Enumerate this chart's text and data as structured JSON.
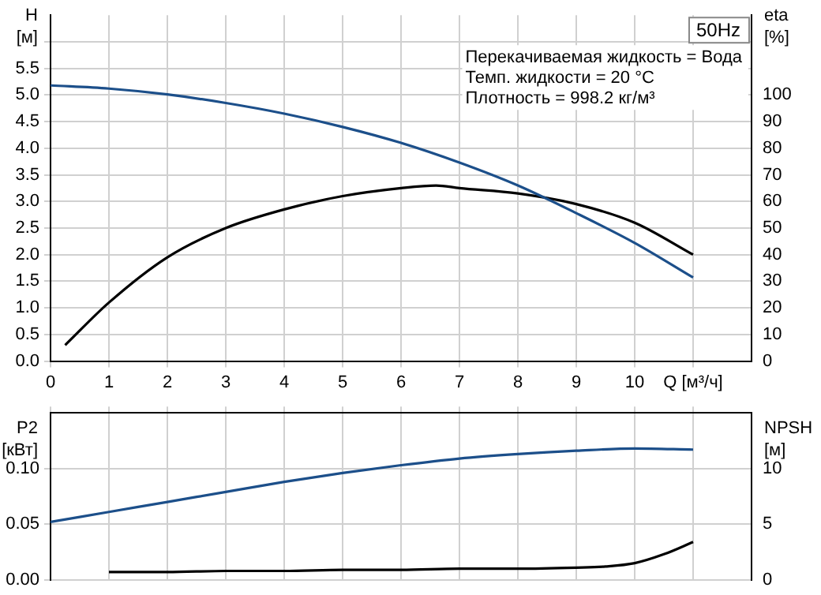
{
  "chart_data": [
    {
      "type": "line",
      "title": "50Hz",
      "ylabel": "H [м]",
      "y2label": "eta [%]",
      "annotations": [
        "Перекачиваемая жидкость = Вода",
        "Темп. жидкости = 20 °C",
        "Плотность = 998.2 кг/м³"
      ],
      "series": [
        {
          "color": "#1c4f8a",
          "axis": "y",
          "x": [
            0,
            1,
            2,
            3,
            4,
            5,
            6,
            7,
            8,
            9,
            10,
            11
          ],
          "values": [
            5.18,
            5.12,
            5.01,
            4.85,
            4.65,
            4.4,
            4.1,
            3.73,
            3.3,
            2.78,
            2.22,
            1.57
          ]
        },
        {
          "color": "#000000",
          "axis": "y2",
          "x": [
            0.25,
            1,
            2,
            3,
            4,
            5,
            6,
            6.6,
            7,
            8,
            9,
            10,
            11
          ],
          "values": [
            6,
            22,
            39,
            50,
            57,
            62,
            65,
            66,
            65,
            63,
            59,
            52,
            40
          ]
        }
      ],
      "xlim": [
        0,
        12
      ],
      "xticks": [
        0,
        1,
        2,
        3,
        4,
        5,
        6,
        7,
        8,
        9,
        10,
        {
          "value": 11,
          "label": "Q [м³/ч]"
        }
      ],
      "ylim": [
        0,
        6.5
      ],
      "yticks": [
        {
          "value": 0,
          "label": "0.0"
        },
        {
          "value": 0.5,
          "label": "0.5"
        },
        {
          "value": 1,
          "label": "1.0"
        },
        {
          "value": 1.5,
          "label": "1.5"
        },
        {
          "value": 2,
          "label": "2.0"
        },
        {
          "value": 2.5,
          "label": "2.5"
        },
        {
          "value": 3,
          "label": "3.0"
        },
        {
          "value": 3.5,
          "label": "3.5"
        },
        {
          "value": 4,
          "label": "4.0"
        },
        {
          "value": 4.5,
          "label": "4.5"
        },
        {
          "value": 5,
          "label": "5.0"
        },
        {
          "value": 5.5,
          "label": "5.5"
        },
        {
          "value": 6,
          "label": null
        }
      ],
      "y2lim": [
        0,
        130
      ],
      "y2ticks": [
        0,
        10,
        20,
        30,
        40,
        50,
        60,
        70,
        80,
        90,
        100
      ],
      "grid": true,
      "legend": false,
      "marker": "none",
      "line_style": "solid"
    },
    {
      "type": "line",
      "ylabel": "P2 [кВт]",
      "y2label": "NPSH [м]",
      "series": [
        {
          "color": "#1c4f8a",
          "axis": "y",
          "x": [
            0,
            1,
            2,
            3,
            4,
            5,
            6,
            7,
            8,
            9,
            10,
            11
          ],
          "values": [
            0.052,
            0.061,
            0.07,
            0.079,
            0.088,
            0.096,
            0.103,
            0.109,
            0.113,
            0.116,
            0.118,
            0.117
          ]
        },
        {
          "color": "#000000",
          "axis": "y2",
          "x": [
            1,
            2,
            3,
            4,
            5,
            6,
            7,
            8,
            9,
            9.5,
            10,
            10.5,
            11
          ],
          "values": [
            0.7,
            0.7,
            0.8,
            0.8,
            0.9,
            0.9,
            1.0,
            1.0,
            1.1,
            1.2,
            1.5,
            2.3,
            3.4
          ]
        }
      ],
      "xlim": [
        0,
        12
      ],
      "xticks": [
        0,
        1,
        2,
        3,
        4,
        5,
        6,
        7,
        8,
        9,
        10,
        11
      ],
      "tick_labels": "y",
      "ylim": [
        0,
        0.15
      ],
      "yticks": [
        {
          "value": 0,
          "label": "0.00"
        },
        {
          "value": 0.05,
          "label": "0.05"
        },
        {
          "value": 0.1,
          "label": "0.10"
        }
      ],
      "y2lim": [
        0,
        15
      ],
      "y2ticks": [
        0,
        5,
        10
      ],
      "grid": true,
      "legend": false,
      "marker": "none",
      "line_style": "solid"
    }
  ]
}
